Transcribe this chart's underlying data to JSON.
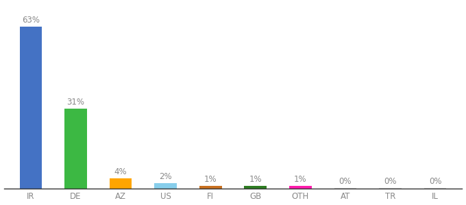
{
  "categories": [
    "IR",
    "DE",
    "AZ",
    "US",
    "FI",
    "GB",
    "OTH",
    "AT",
    "TR",
    "IL"
  ],
  "values": [
    63,
    31,
    4,
    2,
    1,
    1,
    1,
    0.15,
    0.15,
    0.15
  ],
  "display_values": [
    63,
    31,
    4,
    2,
    1,
    1,
    1,
    0,
    0,
    0
  ],
  "labels": [
    "63%",
    "31%",
    "4%",
    "2%",
    "1%",
    "1%",
    "1%",
    "0%",
    "0%",
    "0%"
  ],
  "bar_colors": [
    "#4472c4",
    "#3cb843",
    "#ffa500",
    "#87ceeb",
    "#c87020",
    "#2e7d22",
    "#ff1cac",
    "#cccccc",
    "#cccccc",
    "#cccccc"
  ],
  "background_color": "#ffffff",
  "ylim": [
    0,
    72
  ],
  "label_fontsize": 8.5,
  "tick_fontsize": 8.5,
  "bar_width": 0.5
}
